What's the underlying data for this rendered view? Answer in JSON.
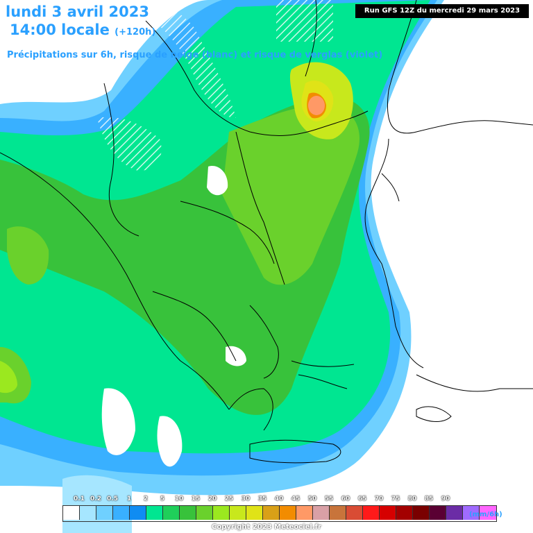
{
  "header": {
    "title_line1": "lundi 3 avril 2023",
    "title_line2": "14:00 locale",
    "lead_time": "(+120h)",
    "subtitle": "Précipitations sur 6h, risque de neige (blanc) et risque de verglas (violet)",
    "run_info": "Run GFS 12Z du mercredi 29 mars 2023"
  },
  "legend": {
    "unit": "(mm/6h)",
    "tick_labels": [
      "0.1",
      "0.2",
      "0.5",
      "1",
      "2",
      "5",
      "10",
      "15",
      "20",
      "25",
      "30",
      "35",
      "40",
      "45",
      "50",
      "55",
      "60",
      "65",
      "70",
      "75",
      "80",
      "85",
      "90"
    ],
    "colors": [
      "#ffffff",
      "#a6e6ff",
      "#6fd0ff",
      "#39b0ff",
      "#0f8cf2",
      "#00e691",
      "#1fcf5a",
      "#38c23b",
      "#6ad12c",
      "#9be81f",
      "#c8e81c",
      "#e0e317",
      "#d9a017",
      "#f28c00",
      "#ff9966",
      "#d9a0a6",
      "#c8743b",
      "#d94c34",
      "#ff1a1a",
      "#d60000",
      "#a30000",
      "#7a0000",
      "#5a0033",
      "#6b2ca6",
      "#a06bff",
      "#ff66ff"
    ]
  },
  "copyright": "Copyright 2023 Meteociel.fr",
  "icons": {
    "map": "precipitation-map",
    "coastline": "coastline-lines",
    "snow": "snow-hatch-overlay"
  }
}
